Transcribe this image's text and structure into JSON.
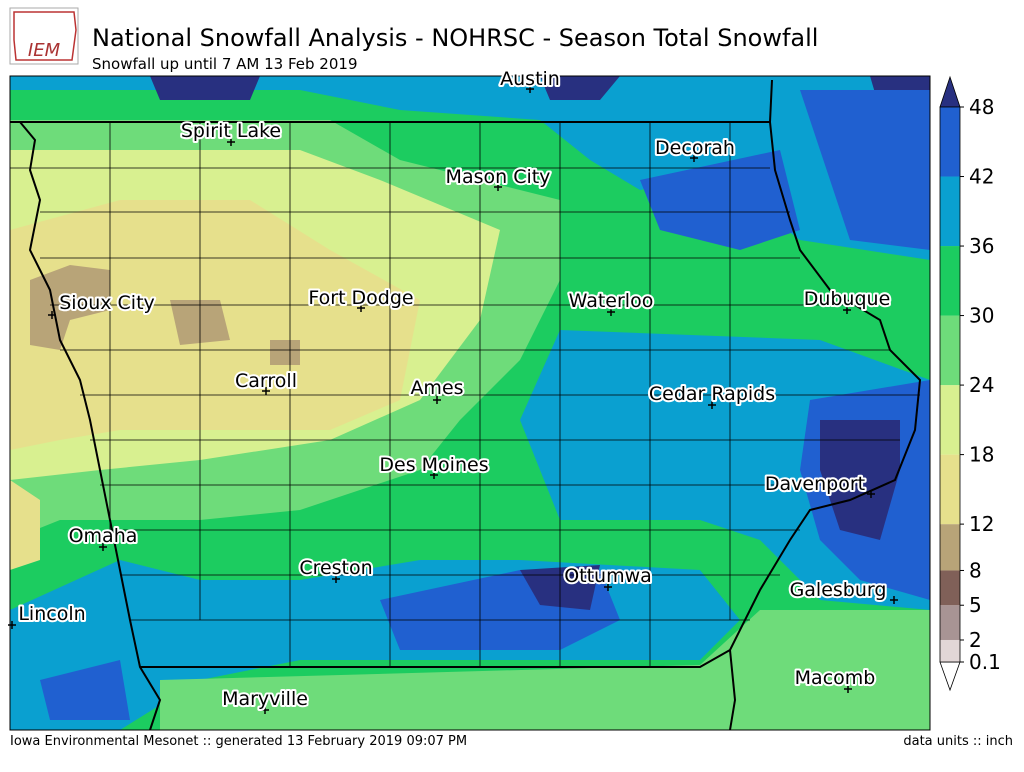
{
  "header": {
    "title": "National Snowfall Analysis - NOHRSC - Season Total Snowfall",
    "subtitle": "Snowfall up until 7 AM 13 Feb 2019"
  },
  "logo": {
    "text": "IEM"
  },
  "cities": [
    {
      "label": "Austin"
    },
    {
      "label": "Spirit Lake"
    },
    {
      "label": "Mason City"
    },
    {
      "label": "Decorah"
    },
    {
      "label": "Sioux City"
    },
    {
      "label": "Fort Dodge"
    },
    {
      "label": "Waterloo"
    },
    {
      "label": "Dubuque"
    },
    {
      "label": "Carroll"
    },
    {
      "label": "Ames"
    },
    {
      "label": "Cedar Rapids"
    },
    {
      "label": "Des Moines"
    },
    {
      "label": "Davenport"
    },
    {
      "label": "Omaha"
    },
    {
      "label": "Creston"
    },
    {
      "label": "Ottumwa"
    },
    {
      "label": "Galesburg"
    },
    {
      "label": "Lincoln"
    },
    {
      "label": "Macomb"
    },
    {
      "label": "Maryville"
    }
  ],
  "legend": {
    "ticks": [
      0.1,
      2,
      5,
      8,
      12,
      18,
      24,
      30,
      36,
      42,
      48
    ],
    "colors": [
      "#e2d6d6",
      "#a89494",
      "#806058",
      "#b8a478",
      "#e6e08c",
      "#d8f090",
      "#6edc7a",
      "#1ccc60",
      "#0aa0d0",
      "#2060d0"
    ],
    "over_color": "#283080",
    "under_color": "#ffffff"
  },
  "footer": {
    "left": "Iowa Environmental Mesonet :: generated 13 February 2019 09:07 PM",
    "right": "data units :: inch"
  }
}
